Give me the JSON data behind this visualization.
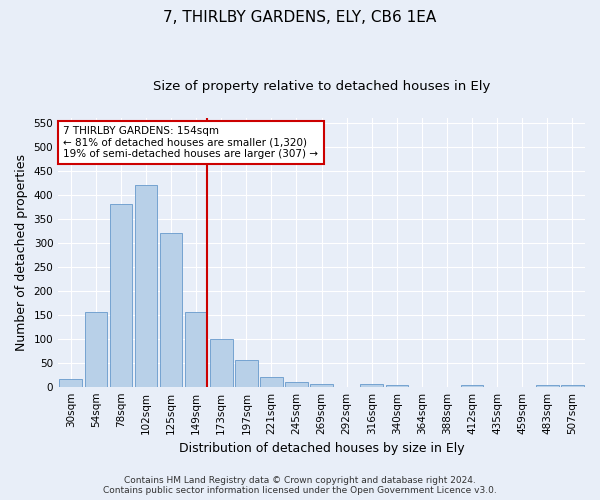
{
  "title": "7, THIRLBY GARDENS, ELY, CB6 1EA",
  "subtitle": "Size of property relative to detached houses in Ely",
  "xlabel": "Distribution of detached houses by size in Ely",
  "ylabel": "Number of detached properties",
  "categories": [
    "30sqm",
    "54sqm",
    "78sqm",
    "102sqm",
    "125sqm",
    "149sqm",
    "173sqm",
    "197sqm",
    "221sqm",
    "245sqm",
    "269sqm",
    "292sqm",
    "316sqm",
    "340sqm",
    "364sqm",
    "388sqm",
    "412sqm",
    "435sqm",
    "459sqm",
    "483sqm",
    "507sqm"
  ],
  "values": [
    15,
    155,
    380,
    420,
    320,
    155,
    100,
    55,
    20,
    10,
    5,
    0,
    5,
    3,
    0,
    0,
    3,
    0,
    0,
    3,
    3
  ],
  "bar_color": "#b8d0e8",
  "bar_edge_color": "#6699cc",
  "reference_line_index": 5,
  "reference_label": "7 THIRLBY GARDENS: 154sqm",
  "annotation_line1": "← 81% of detached houses are smaller (1,320)",
  "annotation_line2": "19% of semi-detached houses are larger (307) →",
  "annotation_box_color": "#ffffff",
  "annotation_box_edge_color": "#cc0000",
  "vline_color": "#cc0000",
  "ylim": [
    0,
    560
  ],
  "yticks": [
    0,
    50,
    100,
    150,
    200,
    250,
    300,
    350,
    400,
    450,
    500,
    550
  ],
  "footer_line1": "Contains HM Land Registry data © Crown copyright and database right 2024.",
  "footer_line2": "Contains public sector information licensed under the Open Government Licence v3.0.",
  "background_color": "#e8eef8",
  "plot_background": "#e8eef8",
  "grid_color": "#ffffff",
  "title_fontsize": 11,
  "subtitle_fontsize": 9.5,
  "axis_label_fontsize": 9,
  "tick_fontsize": 7.5,
  "footer_fontsize": 6.5
}
